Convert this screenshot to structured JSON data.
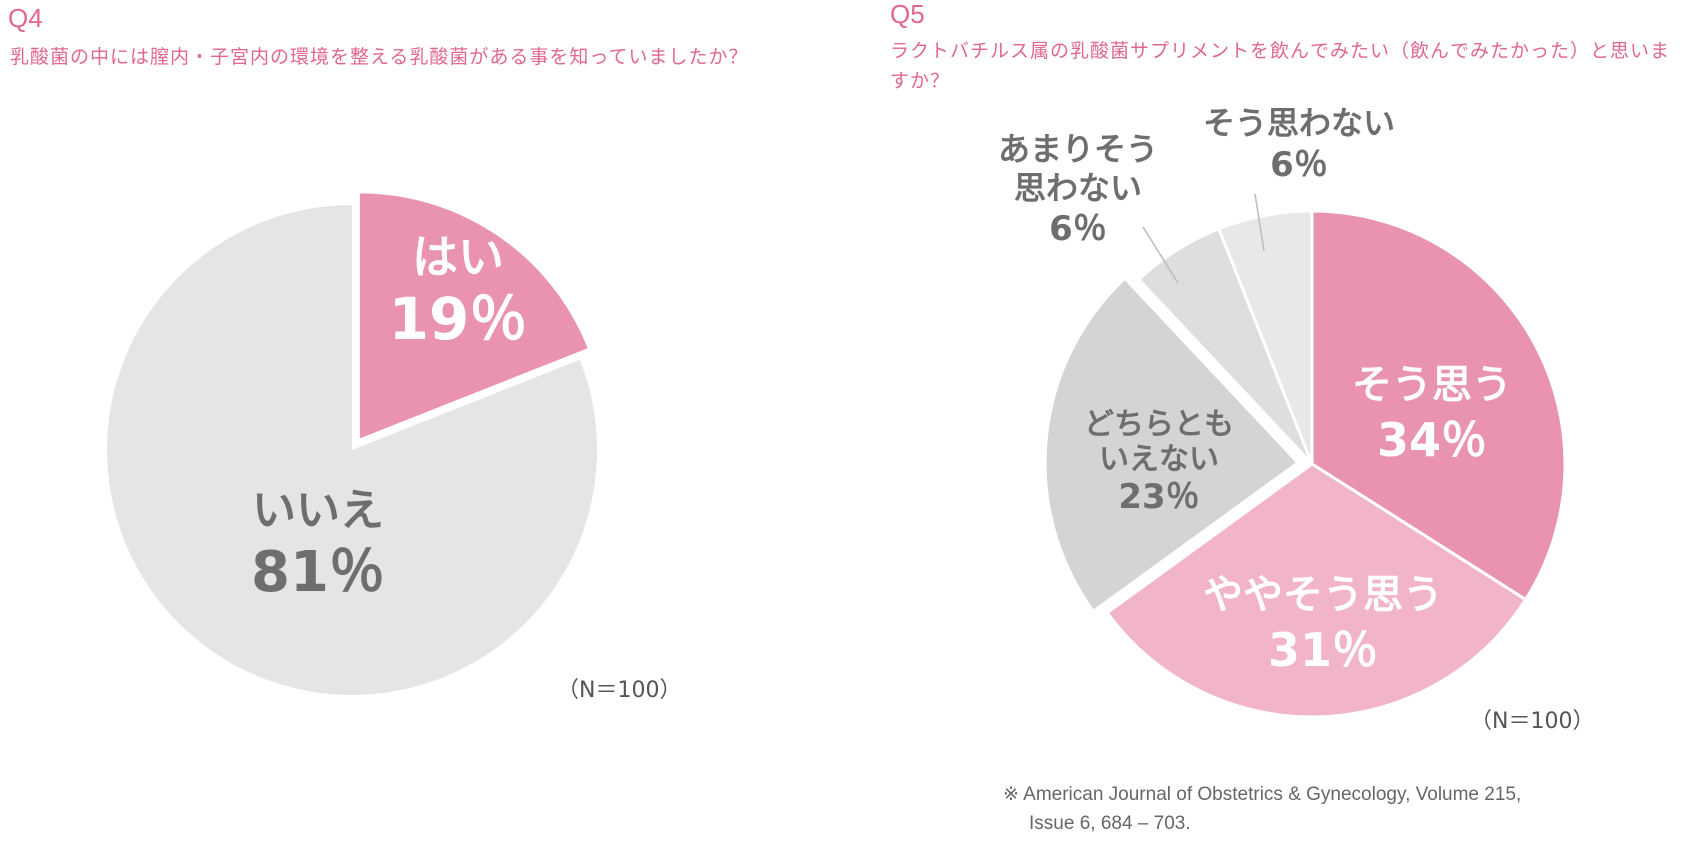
{
  "q4": {
    "label": "Q4",
    "question": "乳酸菌の中には膣内・子宮内の環境を整える乳酸菌がある事を知っていましたか？",
    "n_label": "（N＝100）"
  },
  "q5": {
    "label": "Q5",
    "question": "ラクトバチルス属の乳酸菌サプリメントを飲んでみたい（飲んでみたかった）と思いますか？",
    "n_label": "（N＝100）"
  },
  "source": {
    "line1": "※ American Journal of Obstetrics & Gynecology, Volume 215,",
    "line2": "Issue 6, 684 – 703."
  },
  "chart_data": [
    {
      "type": "pie",
      "title": "乳酸菌の中には膣内・子宮内の環境を整える乳酸菌がある事を知っていましたか？",
      "n": 100,
      "slices": [
        {
          "label": "はい",
          "value": 19,
          "value_label": "19％",
          "color": "#e993b0",
          "text_color": "#ffffff",
          "exploded": true
        },
        {
          "label": "いいえ",
          "value": 81,
          "value_label": "81％",
          "color": "#e5e5e5",
          "text_color": "#6e6e6e",
          "exploded": false
        }
      ]
    },
    {
      "type": "pie",
      "title": "ラクトバチルス属の乳酸菌サプリメントを飲んでみたい（飲んでみたかった）と思いますか？",
      "n": 100,
      "slices": [
        {
          "label": "そう思う",
          "value": 34,
          "value_label": "34％",
          "color": "#e993b0",
          "text_color": "#ffffff",
          "exploded": false
        },
        {
          "label": "ややそう思う",
          "value": 31,
          "value_label": "31％",
          "color": "#f1b4c9",
          "text_color": "#ffffff",
          "exploded": false
        },
        {
          "label": "どちらとも いえない",
          "value": 23,
          "value_label": "23％",
          "color": "#d4d4d4",
          "text_color": "#6e6e6e",
          "exploded": true
        },
        {
          "label": "あまりそう 思わない",
          "value": 6,
          "value_label": "6％",
          "color": "#dedede",
          "text_color": "#6e6e6e",
          "exploded": false
        },
        {
          "label": "そう思わない",
          "value": 6,
          "value_label": "6％",
          "color": "#e8e8e8",
          "text_color": "#6e6e6e",
          "exploded": false
        }
      ]
    }
  ]
}
